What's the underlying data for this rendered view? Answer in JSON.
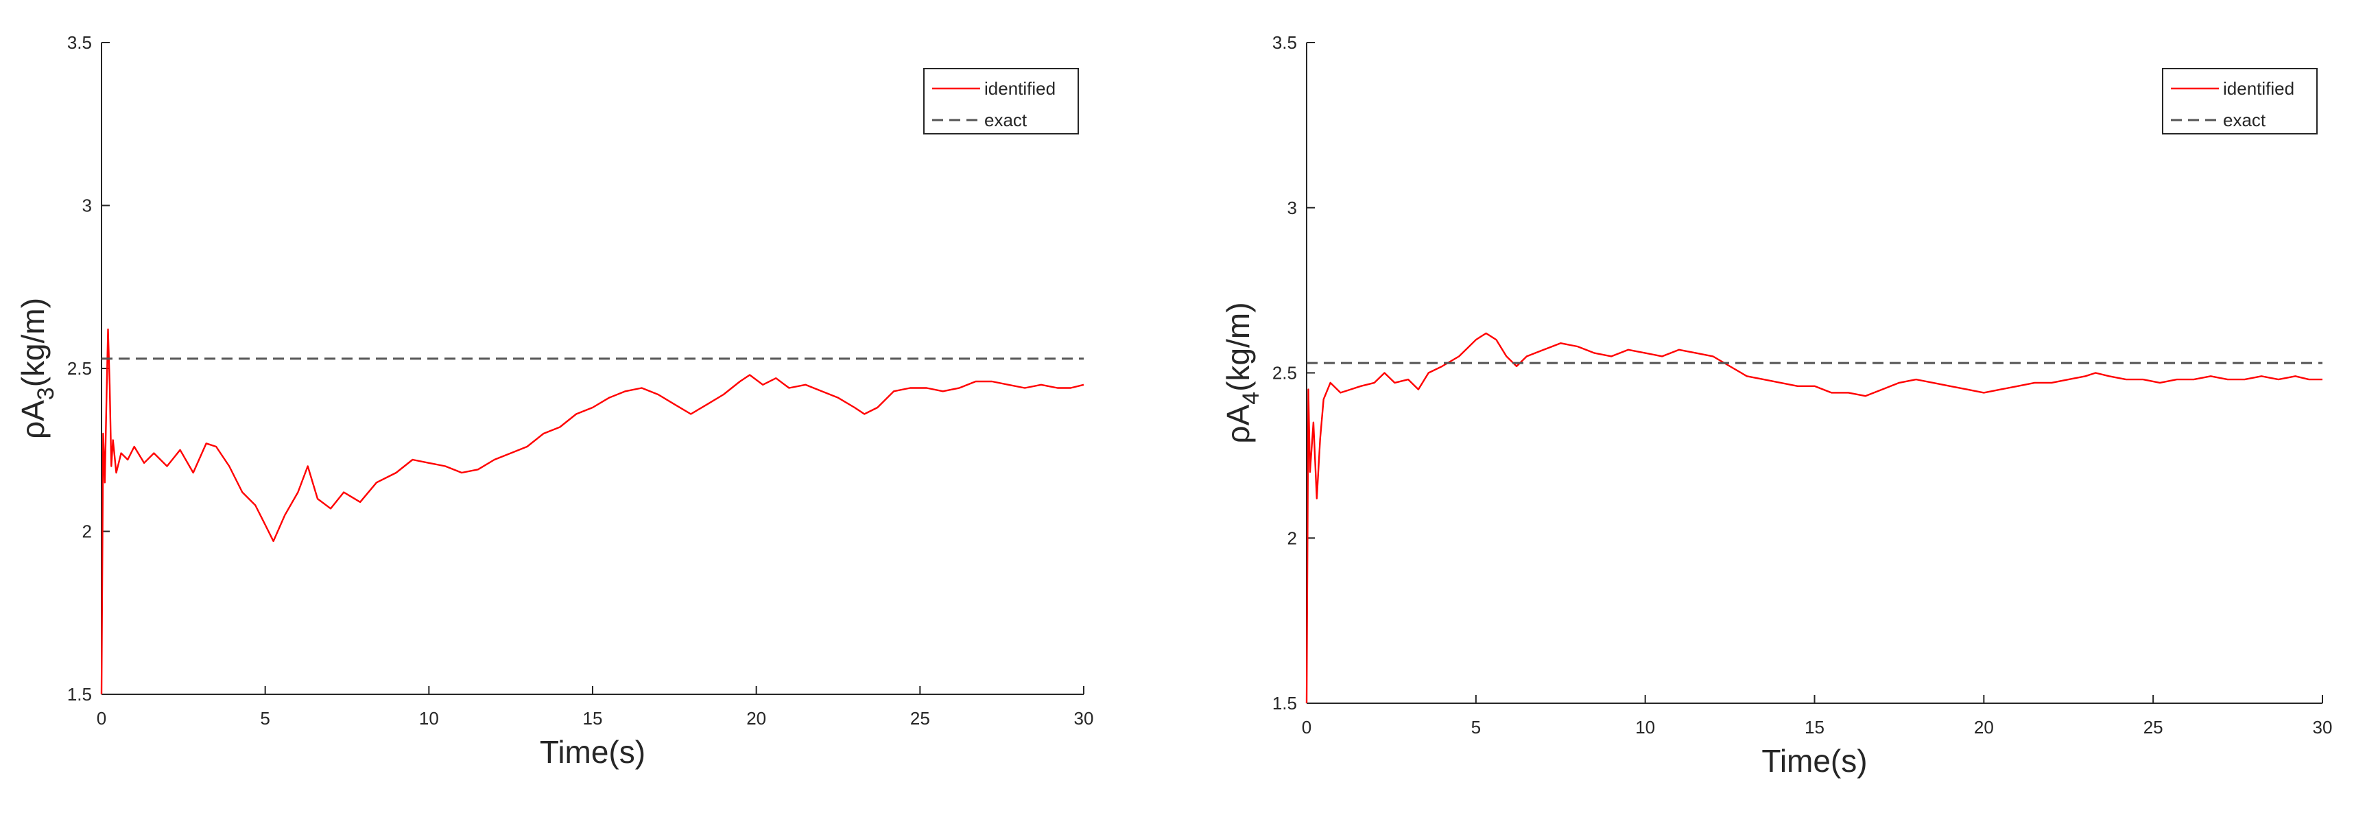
{
  "chart_data": [
    {
      "type": "line",
      "xlabel": "Time(s)",
      "ylabel": "ρA3(kg/m)",
      "ylabel_parts": {
        "symbol": "ρA",
        "subscript": "3",
        "unit": "(kg/m)"
      },
      "xlim": [
        0,
        30
      ],
      "ylim": [
        1.5,
        3.5
      ],
      "xticks": [
        0,
        5,
        10,
        15,
        20,
        25,
        30
      ],
      "yticks": [
        1.5,
        2,
        2.5,
        3,
        3.5
      ],
      "grid": false,
      "legend_position": "top-right",
      "series": [
        {
          "name": "identified",
          "color": "#ff0000",
          "style": "solid",
          "x": [
            0,
            0.05,
            0.1,
            0.15,
            0.2,
            0.25,
            0.3,
            0.35,
            0.45,
            0.6,
            0.8,
            1.0,
            1.3,
            1.6,
            2.0,
            2.4,
            2.8,
            3.2,
            3.5,
            3.9,
            4.3,
            4.7,
            5.0,
            5.25,
            5.6,
            6.0,
            6.3,
            6.6,
            7.0,
            7.4,
            7.9,
            8.4,
            9.0,
            9.5,
            10.0,
            10.5,
            11.0,
            11.5,
            12.0,
            12.5,
            13.0,
            13.5,
            14.0,
            14.5,
            15.0,
            15.5,
            16.0,
            16.5,
            17.0,
            17.5,
            18.0,
            18.5,
            19.0,
            19.5,
            19.8,
            20.2,
            20.6,
            21.0,
            21.5,
            22.0,
            22.5,
            23.0,
            23.3,
            23.7,
            24.2,
            24.7,
            25.2,
            25.7,
            26.2,
            26.7,
            27.2,
            27.7,
            28.2,
            28.7,
            29.2,
            29.6,
            30.0
          ],
          "values": [
            1.5,
            2.3,
            2.15,
            2.4,
            2.62,
            2.45,
            2.2,
            2.28,
            2.18,
            2.24,
            2.22,
            2.26,
            2.21,
            2.24,
            2.2,
            2.25,
            2.18,
            2.27,
            2.26,
            2.2,
            2.12,
            2.08,
            2.02,
            1.97,
            2.05,
            2.12,
            2.2,
            2.1,
            2.07,
            2.12,
            2.09,
            2.15,
            2.18,
            2.22,
            2.21,
            2.2,
            2.18,
            2.19,
            2.22,
            2.24,
            2.26,
            2.3,
            2.32,
            2.36,
            2.38,
            2.41,
            2.43,
            2.44,
            2.42,
            2.39,
            2.36,
            2.39,
            2.42,
            2.46,
            2.48,
            2.45,
            2.47,
            2.44,
            2.45,
            2.43,
            2.41,
            2.38,
            2.36,
            2.38,
            2.43,
            2.44,
            2.44,
            2.43,
            2.44,
            2.46,
            2.46,
            2.45,
            2.44,
            2.45,
            2.44,
            2.44,
            2.45
          ]
        },
        {
          "name": "exact",
          "color": "#555555",
          "style": "dashed",
          "x": [
            0,
            30
          ],
          "values": [
            2.53,
            2.53
          ]
        }
      ]
    },
    {
      "type": "line",
      "xlabel": "Time(s)",
      "ylabel": "ρA4(kg/m)",
      "ylabel_parts": {
        "symbol": "ρA",
        "subscript": "4",
        "unit": "(kg/m)"
      },
      "xlim": [
        0,
        30
      ],
      "ylim": [
        1.5,
        3.5
      ],
      "xticks": [
        0,
        5,
        10,
        15,
        20,
        25,
        30
      ],
      "yticks": [
        1.5,
        2,
        2.5,
        3,
        3.5
      ],
      "grid": false,
      "legend_position": "top-right",
      "series": [
        {
          "name": "identified",
          "color": "#ff0000",
          "style": "solid",
          "x": [
            0,
            0.05,
            0.1,
            0.2,
            0.3,
            0.4,
            0.5,
            0.7,
            1.0,
            1.3,
            1.6,
            2.0,
            2.3,
            2.6,
            3.0,
            3.3,
            3.6,
            4.0,
            4.5,
            5.0,
            5.3,
            5.6,
            5.9,
            6.2,
            6.5,
            7.0,
            7.5,
            8.0,
            8.5,
            9.0,
            9.5,
            10.0,
            10.5,
            11.0,
            11.5,
            12.0,
            12.5,
            13.0,
            13.5,
            14.0,
            14.5,
            15.0,
            15.5,
            16.0,
            16.5,
            17.0,
            17.5,
            18.0,
            18.5,
            19.0,
            19.5,
            20.0,
            20.5,
            21.0,
            21.5,
            22.0,
            22.5,
            23.0,
            23.3,
            23.7,
            24.2,
            24.7,
            25.2,
            25.7,
            26.2,
            26.7,
            27.2,
            27.7,
            28.2,
            28.7,
            29.2,
            29.6,
            30.0
          ],
          "values": [
            1.5,
            2.45,
            2.2,
            2.35,
            2.12,
            2.3,
            2.42,
            2.47,
            2.44,
            2.45,
            2.46,
            2.47,
            2.5,
            2.47,
            2.48,
            2.45,
            2.5,
            2.52,
            2.55,
            2.6,
            2.62,
            2.6,
            2.55,
            2.52,
            2.55,
            2.57,
            2.59,
            2.58,
            2.56,
            2.55,
            2.57,
            2.56,
            2.55,
            2.57,
            2.56,
            2.55,
            2.52,
            2.49,
            2.48,
            2.47,
            2.46,
            2.46,
            2.44,
            2.44,
            2.43,
            2.45,
            2.47,
            2.48,
            2.47,
            2.46,
            2.45,
            2.44,
            2.45,
            2.46,
            2.47,
            2.47,
            2.48,
            2.49,
            2.5,
            2.49,
            2.48,
            2.48,
            2.47,
            2.48,
            2.48,
            2.49,
            2.48,
            2.48,
            2.49,
            2.48,
            2.49,
            2.48,
            2.48
          ]
        },
        {
          "name": "exact",
          "color": "#555555",
          "style": "dashed",
          "x": [
            0,
            30
          ],
          "values": [
            2.53,
            2.53
          ]
        }
      ]
    }
  ]
}
